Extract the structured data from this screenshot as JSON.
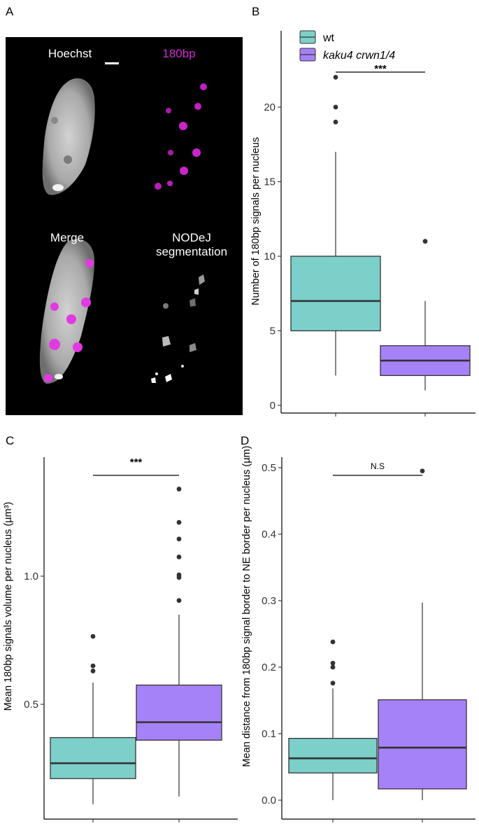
{
  "panel_labels": [
    "A",
    "B",
    "C",
    "D"
  ],
  "micrograph": {
    "labels": {
      "hoechst": "Hoechst",
      "probe": "180bp",
      "merge": "Merge",
      "seg1": "NODeJ",
      "seg2": "segmentation"
    },
    "probe_color": "#d42ad4"
  },
  "colors": {
    "wt": "#7dcfca",
    "mutant": "#a682f8",
    "stroke": "#333333"
  },
  "chart_data": [
    {
      "panel": "B",
      "type": "box",
      "ylabel": "Number of 180bp signals per nucleus",
      "ylim": [
        0,
        22
      ],
      "yticks": [
        0,
        5,
        10,
        15,
        20
      ],
      "legend": {
        "placement": "top",
        "entries": [
          "wt",
          "kaku4 crwn1/4"
        ]
      },
      "significance": "***",
      "series": [
        {
          "name": "wt",
          "min": 2,
          "q1": 5,
          "median": 7,
          "q3": 10,
          "max": 17,
          "outliers": [
            19,
            20,
            22
          ]
        },
        {
          "name": "kaku4 crwn1/4",
          "min": 1,
          "q1": 2,
          "median": 3,
          "q3": 4,
          "max": 7,
          "outliers": [
            11
          ]
        }
      ]
    },
    {
      "panel": "C",
      "type": "box",
      "ylabel": "Mean 180bp signals volume per nucleus (µm³)",
      "ylim": [
        0.1,
        1.35
      ],
      "yticks": [
        0.5,
        1.0
      ],
      "significance": "***",
      "series": [
        {
          "name": "wt",
          "min": 0.11,
          "q1": 0.21,
          "median": 0.27,
          "q3": 0.37,
          "max": 0.585,
          "outliers": [
            0.63,
            0.65,
            0.765
          ]
        },
        {
          "name": "kaku4 crwn1/4",
          "min": 0.14,
          "q1": 0.36,
          "median": 0.43,
          "q3": 0.575,
          "max": 0.85,
          "outliers": [
            0.905,
            0.995,
            1.005,
            1.075,
            1.145,
            1.21,
            1.34
          ]
        }
      ]
    },
    {
      "panel": "D",
      "type": "box",
      "ylabel": "Mean distance from 180bp signal border to NE border per nucleus (µm)",
      "ylim": [
        0,
        0.5
      ],
      "yticks": [
        0.0,
        0.1,
        0.2,
        0.3,
        0.4,
        0.5
      ],
      "significance": "N.S",
      "series": [
        {
          "name": "wt",
          "min": 0.0,
          "q1": 0.041,
          "median": 0.063,
          "q3": 0.093,
          "max": 0.168,
          "outliers": [
            0.176,
            0.2,
            0.206,
            0.238
          ]
        },
        {
          "name": "kaku4 crwn1/4",
          "min": 0.0,
          "q1": 0.017,
          "median": 0.079,
          "q3": 0.151,
          "max": 0.297,
          "outliers": [
            0.495
          ]
        }
      ]
    }
  ]
}
